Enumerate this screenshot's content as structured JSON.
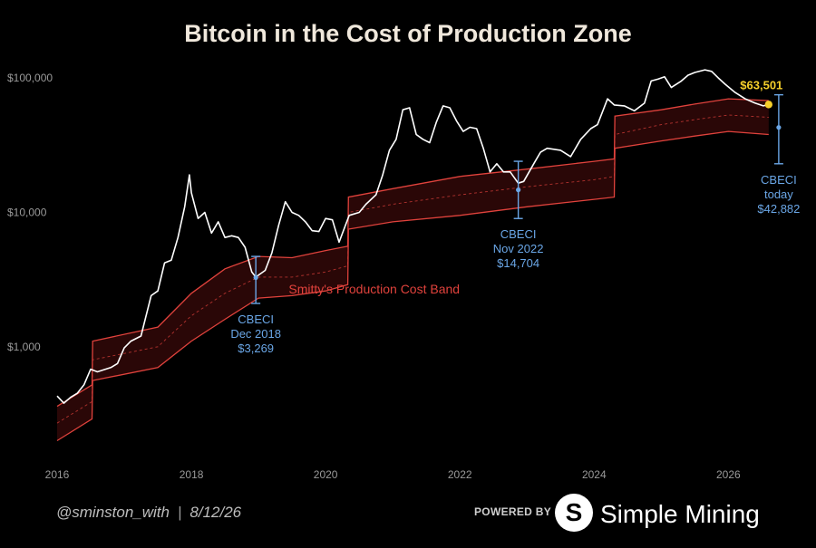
{
  "chart_data": {
    "type": "line",
    "title": "Bitcoin in the Cost of Production Zone",
    "y_scale": "log",
    "ylim": [
      150,
      150000
    ],
    "xlim": [
      2016.0,
      2026.9
    ],
    "y_ticks": [
      {
        "value": 1000,
        "label": "$1,000"
      },
      {
        "value": 10000,
        "label": "$10,000"
      },
      {
        "value": 100000,
        "label": "$100,000"
      }
    ],
    "x_ticks": [
      {
        "value": 2016,
        "label": "2016"
      },
      {
        "value": 2018,
        "label": "2018"
      },
      {
        "value": 2020,
        "label": "2020"
      },
      {
        "value": 2022,
        "label": "2022"
      },
      {
        "value": 2024,
        "label": "2024"
      },
      {
        "value": 2026,
        "label": "2026"
      }
    ],
    "grid": false,
    "legend": "none",
    "colors": {
      "price": "#ffffff",
      "band": "#e0423c",
      "band_fill": "#2a0707",
      "annotation": "#6aa6e6",
      "current": "#f6cf2b",
      "title": "#f0e8dc"
    },
    "series": [
      {
        "name": "price",
        "x": [
          2016.0,
          2016.1,
          2016.2,
          2016.3,
          2016.4,
          2016.5,
          2016.6,
          2016.8,
          2016.9,
          2017.0,
          2017.1,
          2017.25,
          2017.4,
          2017.5,
          2017.6,
          2017.7,
          2017.8,
          2017.9,
          2017.97,
          2018.0,
          2018.1,
          2018.2,
          2018.3,
          2018.4,
          2018.5,
          2018.6,
          2018.7,
          2018.8,
          2018.9,
          2018.96,
          2019.1,
          2019.2,
          2019.3,
          2019.4,
          2019.5,
          2019.6,
          2019.7,
          2019.8,
          2019.9,
          2020.0,
          2020.1,
          2020.2,
          2020.35,
          2020.5,
          2020.6,
          2020.75,
          2020.85,
          2020.95,
          2021.05,
          2021.15,
          2021.25,
          2021.35,
          2021.45,
          2021.55,
          2021.65,
          2021.75,
          2021.85,
          2021.95,
          2022.05,
          2022.15,
          2022.25,
          2022.35,
          2022.45,
          2022.55,
          2022.65,
          2022.75,
          2022.87,
          2022.95,
          2023.1,
          2023.2,
          2023.3,
          2023.5,
          2023.65,
          2023.8,
          2023.95,
          2024.05,
          2024.2,
          2024.3,
          2024.45,
          2024.6,
          2024.75,
          2024.85,
          2024.95,
          2025.05,
          2025.15,
          2025.3,
          2025.4,
          2025.5,
          2025.65,
          2025.75,
          2025.85,
          2025.95,
          2026.1,
          2026.25,
          2026.4,
          2026.52,
          2026.6
        ],
        "values": [
          430,
          380,
          420,
          450,
          520,
          680,
          650,
          700,
          750,
          980,
          1100,
          1200,
          2400,
          2600,
          4200,
          4400,
          6500,
          11000,
          19000,
          14000,
          9000,
          10000,
          7000,
          8500,
          6500,
          6700,
          6500,
          5500,
          3600,
          3300,
          3700,
          5000,
          8000,
          12000,
          10000,
          9500,
          8500,
          7300,
          7200,
          9000,
          8800,
          6000,
          9500,
          10000,
          11500,
          13500,
          19000,
          29000,
          35000,
          58000,
          60000,
          38000,
          35000,
          33000,
          47000,
          62000,
          60000,
          48000,
          40000,
          43000,
          42000,
          30000,
          20000,
          23000,
          20000,
          20000,
          16500,
          17000,
          23000,
          28000,
          30000,
          29000,
          26000,
          35000,
          42000,
          45000,
          70000,
          63000,
          62000,
          57000,
          65000,
          95000,
          98000,
          102000,
          85000,
          95000,
          105000,
          110000,
          115000,
          112000,
          100000,
          90000,
          78000,
          70000,
          65000,
          62000,
          63501
        ]
      },
      {
        "name": "band_upper",
        "x": [
          2016.0,
          2016.52,
          2016.53,
          2017.5,
          2018.0,
          2018.5,
          2019.0,
          2019.5,
          2020.0,
          2020.33,
          2020.34,
          2021.0,
          2022.0,
          2023.0,
          2024.0,
          2024.3,
          2024.31,
          2025.0,
          2025.5,
          2026.0,
          2026.6
        ],
        "values": [
          360,
          520,
          1100,
          1400,
          2500,
          3800,
          4700,
          4600,
          5200,
          5600,
          13000,
          15000,
          18500,
          21000,
          24000,
          25000,
          52000,
          58000,
          64000,
          70000,
          68000
        ]
      },
      {
        "name": "band_mid",
        "x": [
          2016.0,
          2016.52,
          2016.53,
          2017.5,
          2018.0,
          2018.5,
          2019.0,
          2019.5,
          2020.0,
          2020.33,
          2020.34,
          2021.0,
          2022.0,
          2023.0,
          2024.0,
          2024.3,
          2024.31,
          2025.0,
          2025.5,
          2026.0,
          2026.6
        ],
        "values": [
          270,
          390,
          800,
          1000,
          1700,
          2500,
          3300,
          3300,
          3600,
          4000,
          10000,
          11500,
          13500,
          15500,
          17500,
          18500,
          38000,
          45000,
          49000,
          53000,
          51000
        ]
      },
      {
        "name": "band_lower",
        "x": [
          2016.0,
          2016.52,
          2016.53,
          2017.5,
          2018.0,
          2018.5,
          2019.0,
          2019.5,
          2020.0,
          2020.33,
          2020.34,
          2021.0,
          2022.0,
          2023.0,
          2024.0,
          2024.3,
          2024.31,
          2025.0,
          2025.5,
          2026.0,
          2026.6
        ],
        "values": [
          200,
          290,
          560,
          700,
          1100,
          1600,
          2300,
          2400,
          2600,
          2900,
          7500,
          8500,
          9500,
          11000,
          12500,
          13000,
          30000,
          34000,
          37000,
          40000,
          38000
        ]
      }
    ],
    "band_label": "Smitty's Production Cost Band",
    "annotations": [
      {
        "label": "CBECI",
        "sub": "Dec 2018",
        "value_text": "$3,269",
        "x": 2018.96,
        "value": 3269,
        "low": 2100,
        "high": 4700
      },
      {
        "label": "CBECI",
        "sub": "Nov 2022",
        "value_text": "$14,704",
        "x": 2022.87,
        "value": 14704,
        "low": 9000,
        "high": 24000
      },
      {
        "label": "CBECI",
        "sub": "today",
        "value_text": "$42,882",
        "x": 2026.75,
        "value": 42882,
        "low": 23000,
        "high": 75000
      }
    ],
    "current_price": {
      "x": 2026.6,
      "value": 63501,
      "label": "$63,501"
    }
  },
  "footer": {
    "handle": "@sminston_with",
    "separator": "|",
    "date": "8/12/26",
    "powered_by": "POWERED BY",
    "logo_letter": "S",
    "brand": "Simple Mining"
  }
}
